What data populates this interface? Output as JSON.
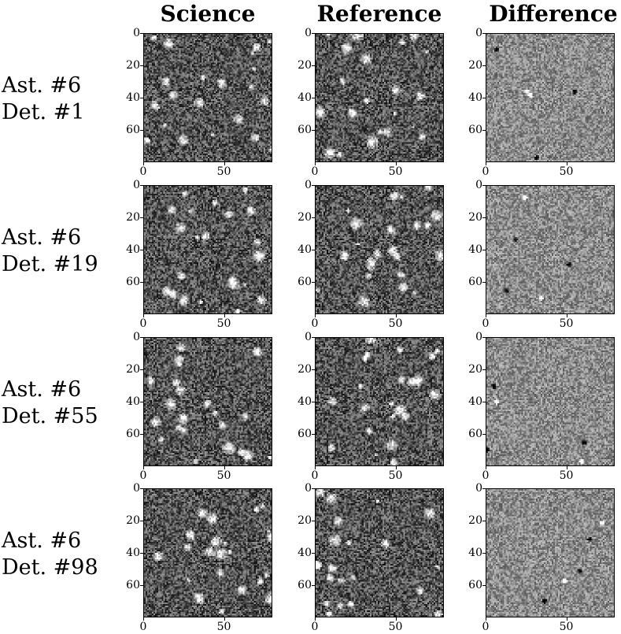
{
  "columns": [
    {
      "key": "science",
      "title": "Science"
    },
    {
      "key": "reference",
      "title": "Reference"
    },
    {
      "key": "difference",
      "title": "Difference"
    }
  ],
  "rows": [
    {
      "line1": "Ast. #6",
      "line2": "Det. #1"
    },
    {
      "line1": "Ast. #6",
      "line2": "Det. #19"
    },
    {
      "line1": "Ast. #6",
      "line2": "Det. #55"
    },
    {
      "line1": "Ast. #6",
      "line2": "Det. #98"
    }
  ],
  "axes": {
    "y_ticks": [
      "0",
      "20",
      "40",
      "60"
    ],
    "x_ticks": [
      "0",
      "50"
    ]
  },
  "colors": {
    "frame": "#000000",
    "background_science": "#555555",
    "background_difference": "#8c8c8c"
  }
}
